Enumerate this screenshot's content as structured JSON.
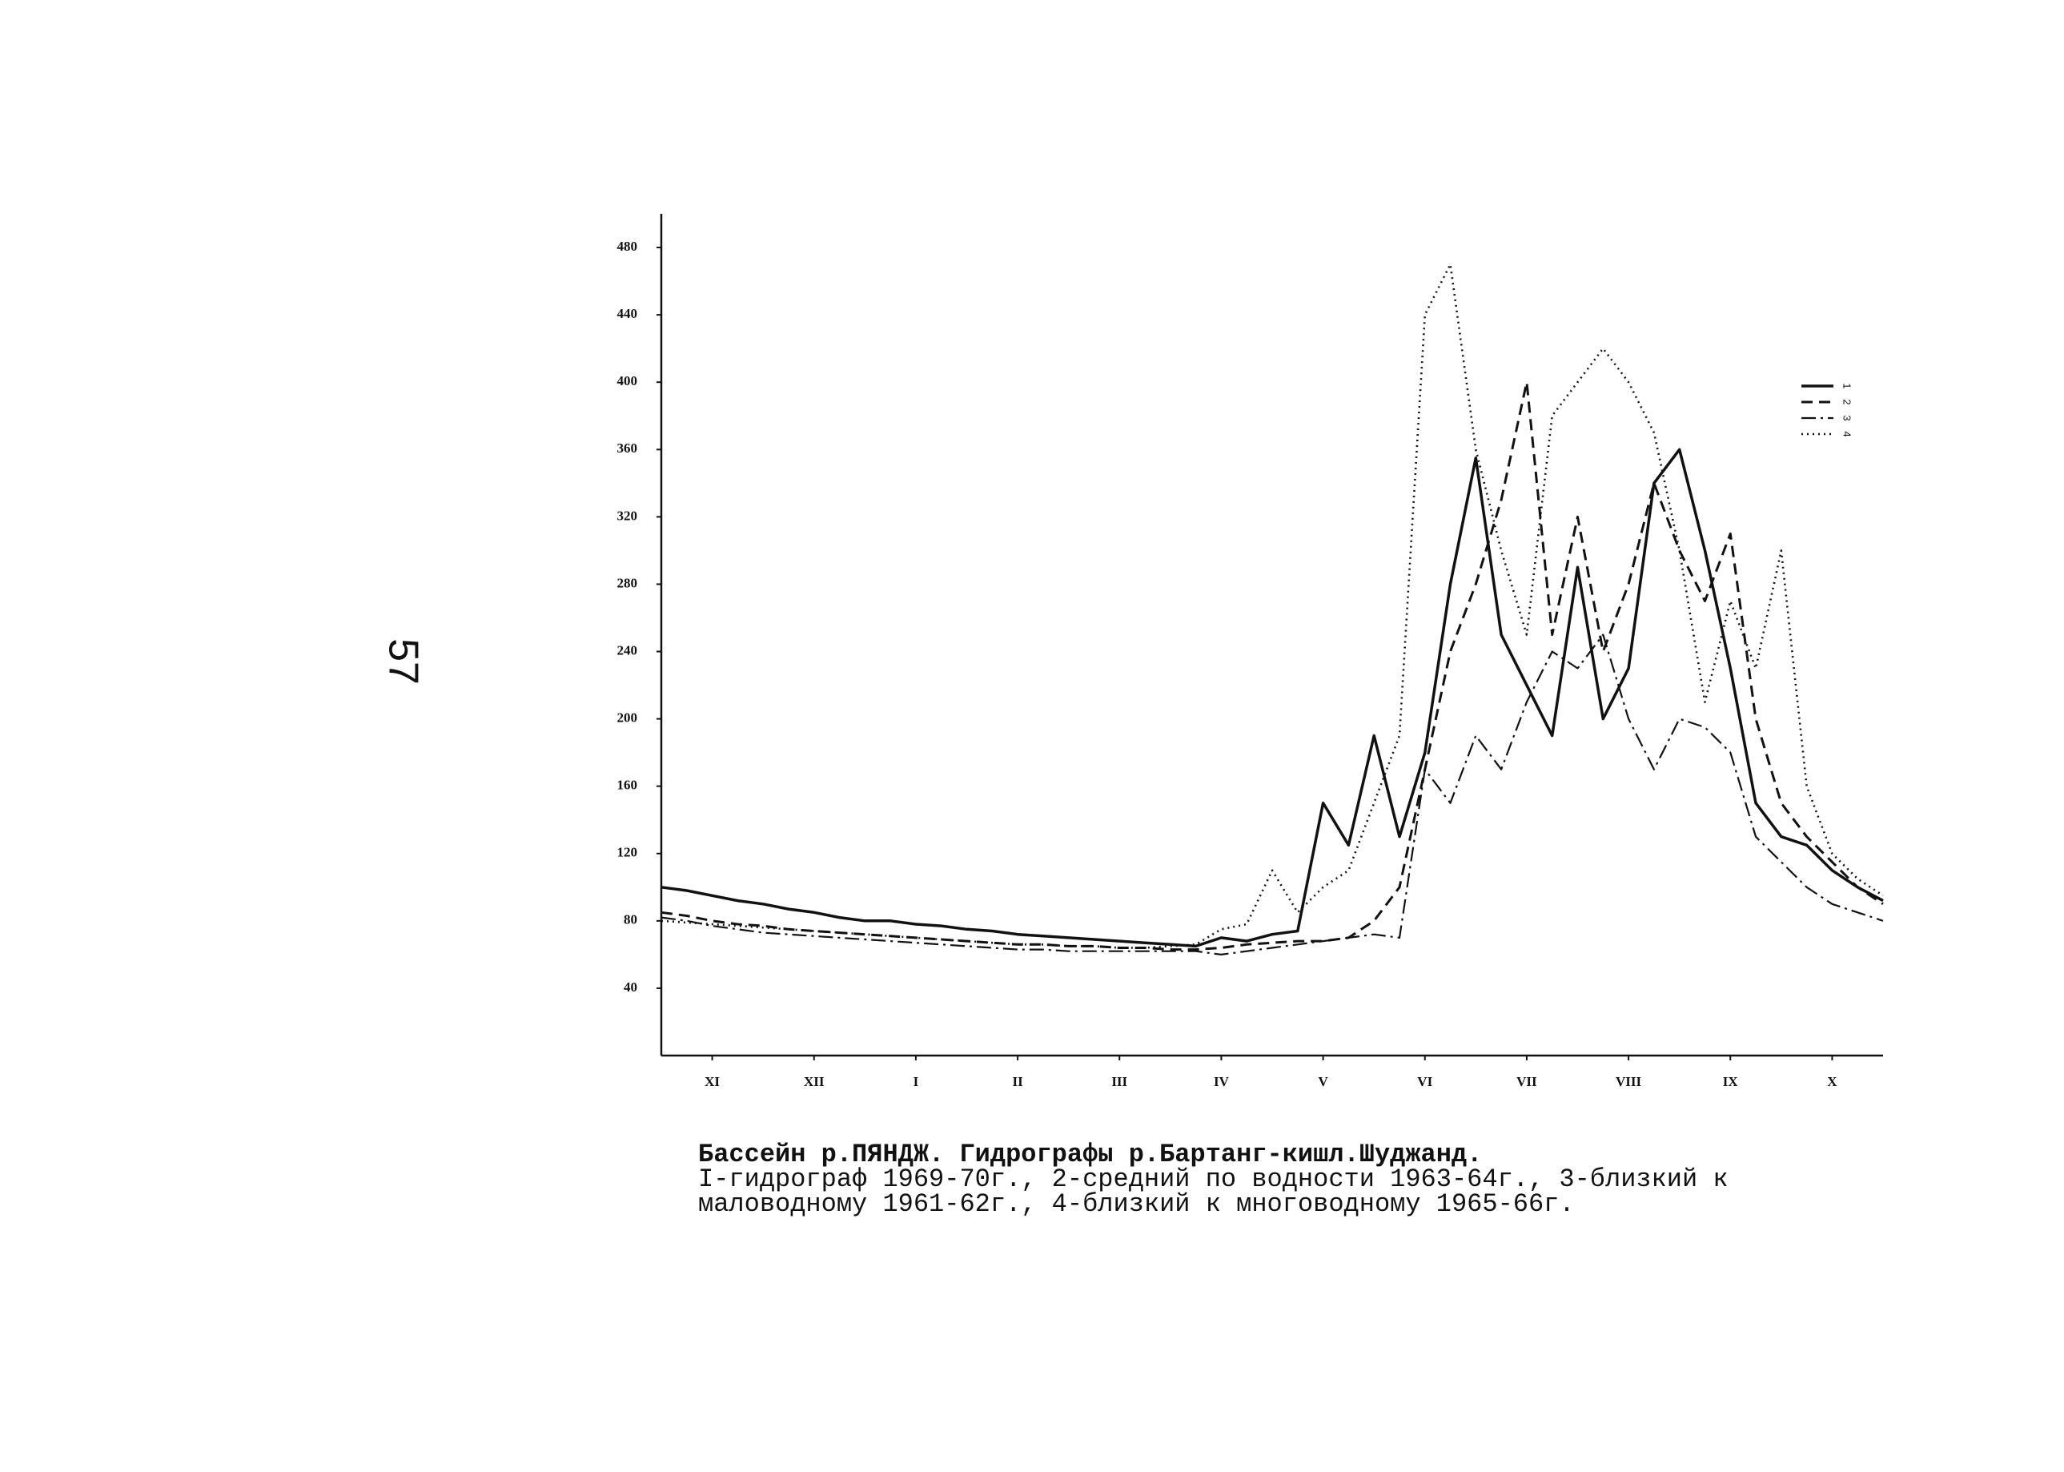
{
  "page_number": "57",
  "caption": [
    "Бассейн р.ПЯНДЖ. Гидрографы р.Бартанг-кишл.Шуджанд.",
    "I-гидрограф 1969-70г., 2-средний по водности 1963-64г., 3-близкий к",
    "маловодному 1961-62г., 4-близкий к многоводному 1965-66г."
  ],
  "chart_data": {
    "type": "line",
    "legend": "right",
    "x": [
      0,
      0.25,
      0.5,
      0.75,
      1,
      1.25,
      1.5,
      1.75,
      2,
      2.25,
      2.5,
      2.75,
      3,
      3.25,
      3.5,
      3.75,
      4,
      4.25,
      4.5,
      4.75,
      5,
      5.25,
      5.5,
      5.75,
      6,
      6.25,
      6.5,
      6.75,
      7,
      7.25,
      7.5,
      7.75,
      8,
      8.25,
      8.5,
      8.75,
      9,
      9.25,
      9.5,
      9.75,
      10,
      10.25,
      10.5,
      10.75,
      11,
      11.25,
      11.5,
      11.75,
      12
    ],
    "xlim": [
      0,
      12
    ],
    "xticks": [
      {
        "value": 0.5,
        "label": "XI"
      },
      {
        "value": 1.5,
        "label": "XII"
      },
      {
        "value": 2.5,
        "label": "I"
      },
      {
        "value": 3.5,
        "label": "II"
      },
      {
        "value": 4.5,
        "label": "III"
      },
      {
        "value": 5.5,
        "label": "IV"
      },
      {
        "value": 6.5,
        "label": "V"
      },
      {
        "value": 7.5,
        "label": "VI"
      },
      {
        "value": 8.5,
        "label": "VII"
      },
      {
        "value": 9.5,
        "label": "VIII"
      },
      {
        "value": 10.5,
        "label": "IX"
      },
      {
        "value": 11.5,
        "label": "X"
      }
    ],
    "ylim": [
      0,
      500
    ],
    "yticks": [
      40,
      80,
      120,
      160,
      200,
      240,
      280,
      320,
      360,
      400,
      440,
      480
    ],
    "series": [
      {
        "name": "1",
        "color": "#111111",
        "dash": "solid",
        "values": [
          100,
          98,
          95,
          92,
          90,
          87,
          85,
          82,
          80,
          80,
          78,
          77,
          75,
          74,
          72,
          71,
          70,
          69,
          68,
          67,
          66,
          65,
          70,
          68,
          72,
          74,
          150,
          125,
          190,
          130,
          180,
          280,
          355,
          250,
          220,
          190,
          290,
          200,
          230,
          340,
          360,
          300,
          230,
          150,
          130,
          125,
          110,
          100,
          92
        ]
      },
      {
        "name": "2",
        "color": "#111111",
        "dash": "dashed",
        "values": [
          85,
          83,
          80,
          78,
          77,
          75,
          74,
          73,
          72,
          71,
          70,
          69,
          68,
          67,
          66,
          66,
          65,
          65,
          64,
          64,
          63,
          63,
          64,
          66,
          67,
          68,
          68,
          70,
          80,
          100,
          170,
          240,
          280,
          330,
          400,
          250,
          320,
          240,
          280,
          340,
          300,
          270,
          310,
          200,
          150,
          130,
          115,
          100,
          90
        ]
      },
      {
        "name": "3",
        "color": "#111111",
        "dash": "dashdot",
        "values": [
          82,
          80,
          77,
          75,
          73,
          72,
          71,
          70,
          69,
          68,
          67,
          66,
          65,
          64,
          63,
          63,
          62,
          62,
          62,
          62,
          62,
          62,
          60,
          62,
          64,
          66,
          68,
          70,
          72,
          70,
          170,
          150,
          190,
          170,
          210,
          240,
          230,
          250,
          200,
          170,
          200,
          195,
          180,
          130,
          115,
          100,
          90,
          85,
          80
        ]
      },
      {
        "name": "4",
        "color": "#111111",
        "dash": "dotted",
        "values": [
          80,
          79,
          78,
          77,
          76,
          75,
          74,
          73,
          72,
          71,
          70,
          69,
          68,
          67,
          66,
          66,
          65,
          65,
          64,
          64,
          65,
          66,
          75,
          78,
          110,
          85,
          100,
          110,
          150,
          190,
          440,
          470,
          360,
          300,
          250,
          380,
          400,
          420,
          400,
          370,
          300,
          210,
          270,
          230,
          300,
          160,
          120,
          105,
          95
        ]
      }
    ]
  }
}
